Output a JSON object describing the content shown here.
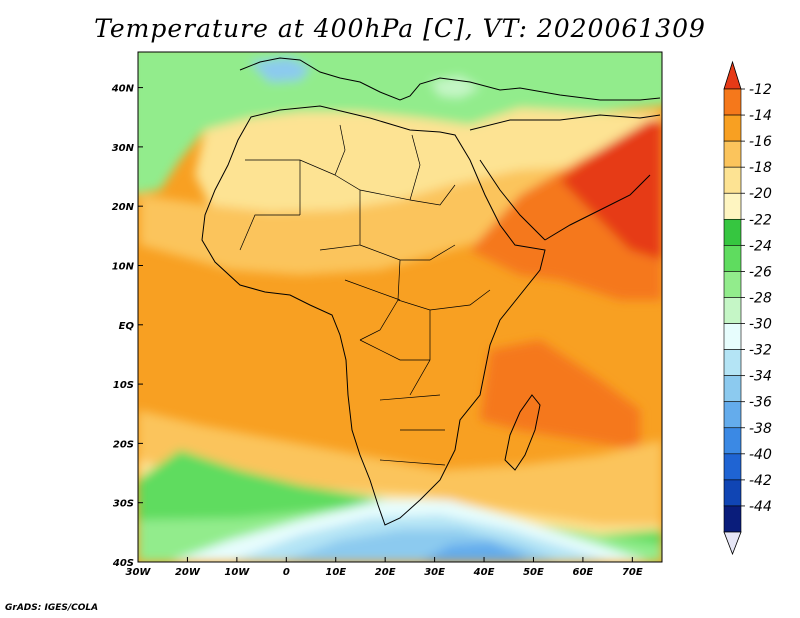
{
  "title": "Temperature at 400hPa [C], VT: 2020061309",
  "credit": "GrADS: IGES/COLA",
  "map": {
    "lon_range": [
      -30,
      76
    ],
    "lat_range": [
      -40,
      46
    ],
    "lon_labels": [
      "30W",
      "20W",
      "10W",
      "0",
      "10E",
      "20E",
      "30E",
      "40E",
      "50E",
      "60E",
      "70E"
    ],
    "lat_labels": [
      "40N",
      "30N",
      "20N",
      "10N",
      "EQ",
      "10S",
      "20S",
      "30S",
      "40S"
    ],
    "legend": [
      "-12",
      "-14",
      "-16",
      "-18",
      "-20",
      "-22",
      "-24",
      "-26",
      "-28",
      "-30",
      "-32",
      "-34",
      "-36",
      "-38",
      "-40",
      "-42",
      "-44"
    ],
    "colors": [
      "#e63a17",
      "#f5781b",
      "#f8a022",
      "#fbc45c",
      "#fde393",
      "#fef5c1",
      "#36c640",
      "#5fdc5f",
      "#92ec8c",
      "#c5f6c6",
      "#e7fdfd",
      "#b4e4f5",
      "#8ccaef",
      "#64acec",
      "#3b89e4",
      "#1f64d3",
      "#1045b4",
      "#0a1d7b"
    ]
  }
}
